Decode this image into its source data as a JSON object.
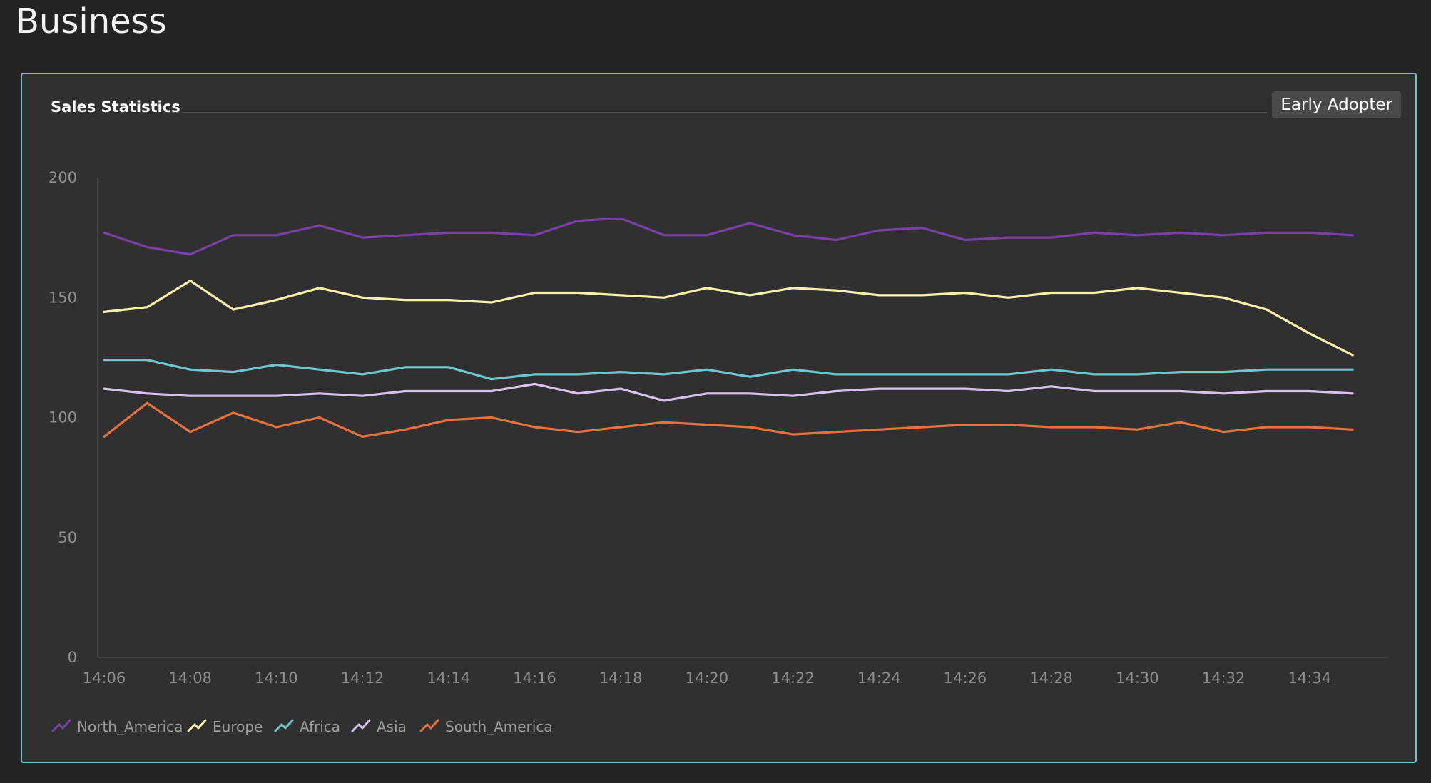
{
  "page": {
    "title": "Business"
  },
  "panel": {
    "title": "Sales Statistics",
    "badge": "Early Adopter"
  },
  "chart_data": {
    "type": "line",
    "title": "Sales Statistics",
    "xlabel": "",
    "ylabel": "",
    "ylim": [
      0,
      200
    ],
    "yticks": [
      0,
      50,
      100,
      150,
      200
    ],
    "x": [
      "14:06",
      "14:07",
      "14:08",
      "14:09",
      "14:10",
      "14:11",
      "14:12",
      "14:13",
      "14:14",
      "14:15",
      "14:16",
      "14:17",
      "14:18",
      "14:19",
      "14:20",
      "14:21",
      "14:22",
      "14:23",
      "14:24",
      "14:25",
      "14:26",
      "14:27",
      "14:28",
      "14:29",
      "14:30",
      "14:31",
      "14:32",
      "14:33",
      "14:34",
      "14:35"
    ],
    "xtick_labels": [
      "14:06",
      "14:08",
      "14:10",
      "14:12",
      "14:14",
      "14:16",
      "14:18",
      "14:20",
      "14:22",
      "14:24",
      "14:26",
      "14:28",
      "14:30",
      "14:32",
      "14:34"
    ],
    "grid": false,
    "legend": "bottom-left",
    "series": [
      {
        "name": "North_America",
        "color": "#7b3fa8",
        "values": [
          177,
          171,
          168,
          176,
          176,
          180,
          175,
          176,
          177,
          177,
          176,
          182,
          183,
          176,
          176,
          181,
          176,
          174,
          178,
          179,
          174,
          175,
          175,
          177,
          176,
          177,
          176,
          177,
          177,
          176
        ]
      },
      {
        "name": "Europe",
        "color": "#fbf1a9",
        "values": [
          144,
          146,
          157,
          145,
          149,
          154,
          150,
          149,
          149,
          148,
          152,
          152,
          151,
          150,
          154,
          151,
          154,
          153,
          151,
          151,
          152,
          150,
          152,
          152,
          154,
          152,
          150,
          145,
          135,
          126
        ]
      },
      {
        "name": "Africa",
        "color": "#6bc7d0",
        "values": [
          124,
          124,
          120,
          119,
          122,
          120,
          118,
          121,
          121,
          116,
          118,
          118,
          119,
          118,
          120,
          117,
          120,
          118,
          118,
          118,
          118,
          118,
          120,
          118,
          118,
          119,
          119,
          120,
          120,
          120
        ]
      },
      {
        "name": "Asia",
        "color": "#d9c0ef",
        "values": [
          112,
          110,
          109,
          109,
          109,
          110,
          109,
          111,
          111,
          111,
          114,
          110,
          112,
          107,
          110,
          110,
          109,
          111,
          112,
          112,
          112,
          111,
          113,
          111,
          111,
          111,
          110,
          111,
          111,
          110
        ]
      },
      {
        "name": "South_America",
        "color": "#ea7139",
        "values": [
          92,
          106,
          94,
          102,
          96,
          100,
          92,
          95,
          99,
          100,
          96,
          94,
          96,
          98,
          97,
          96,
          93,
          94,
          95,
          96,
          97,
          97,
          96,
          96,
          95,
          98,
          94,
          96,
          96,
          95
        ]
      }
    ]
  }
}
